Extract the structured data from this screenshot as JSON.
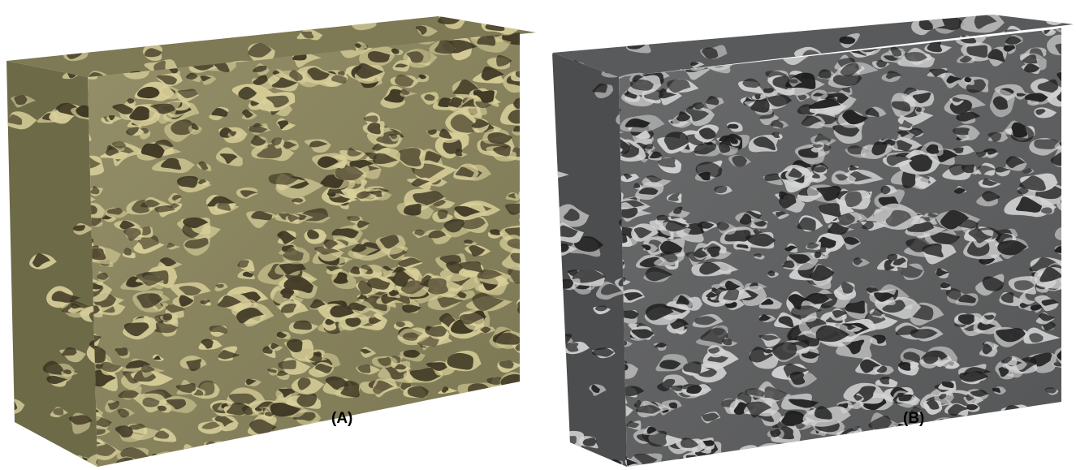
{
  "figure": {
    "panels": [
      {
        "id": "A",
        "label": "(A)",
        "material_color": "#8a8660",
        "highlight_color": "#d8cf9a",
        "pore_color": "#3a3320"
      },
      {
        "id": "B",
        "label": "(B)",
        "material_color": "#5f6061",
        "highlight_color": "#d4d4d4",
        "pore_color": "#1c1c1c"
      }
    ]
  }
}
